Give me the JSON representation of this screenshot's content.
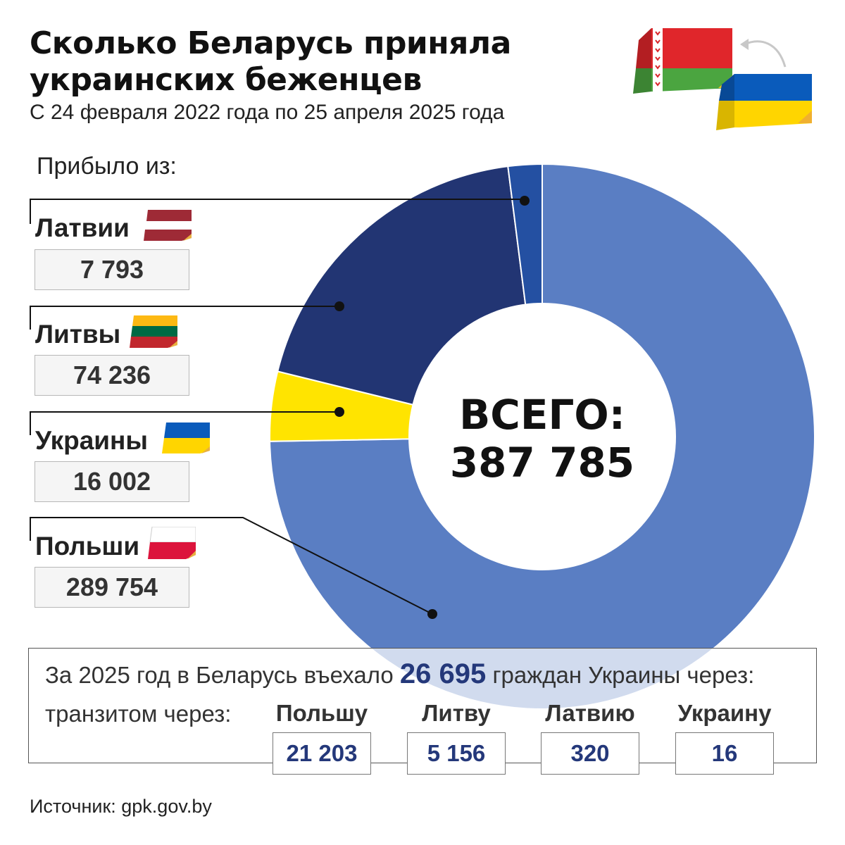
{
  "header": {
    "title_line1": "Сколько Беларусь приняла",
    "title_line2": "украинских беженцев",
    "subtitle": "С 24 февраля 2022 года по 25 апреля 2025 года"
  },
  "arrived_label": "Прибыло из:",
  "flags": {
    "belarus": [
      "#e0262b",
      "#4ba540"
    ],
    "ukraine": [
      "#0a5bbb",
      "#ffd500"
    ]
  },
  "countries": [
    {
      "name": "Латвии",
      "value": "7 793",
      "flag": [
        "#9e2a36",
        "#ffffff",
        "#9e2a36"
      ]
    },
    {
      "name": "Литвы",
      "value": "74 236",
      "flag": [
        "#fdb913",
        "#006a44",
        "#c1272d"
      ]
    },
    {
      "name": "Украины",
      "value": "16 002",
      "flag": [
        "#0a5bbb",
        "#ffd500"
      ]
    },
    {
      "name": "Польши",
      "value": "289 754",
      "flag": [
        "#ffffff",
        "#dc143c"
      ]
    }
  ],
  "total": {
    "label": "ВСЕГО:",
    "value": "387 785"
  },
  "chart_data": {
    "type": "pie",
    "variant": "donut",
    "total": 387785,
    "slices": [
      {
        "label": "Латвии",
        "value": 7793,
        "color": "#2450a2"
      },
      {
        "label": "Литвы",
        "value": 74236,
        "color": "#223573"
      },
      {
        "label": "Украины",
        "value": 16002,
        "color": "#ffe400"
      },
      {
        "label": "Польши",
        "value": 289754,
        "color": "#5a7ec3"
      }
    ]
  },
  "panel": {
    "prefix": "За 2025 год в Беларусь въехало",
    "highlight": "26 695",
    "suffix": "граждан Украины через:",
    "transit_label": "транзитом через:",
    "columns": [
      {
        "label": "Польшу",
        "value": "21 203"
      },
      {
        "label": "Литву",
        "value": "5 156"
      },
      {
        "label": "Латвию",
        "value": "320"
      },
      {
        "label": "Украину",
        "value": "16"
      }
    ]
  },
  "source": "Источник: gpk.gov.by"
}
